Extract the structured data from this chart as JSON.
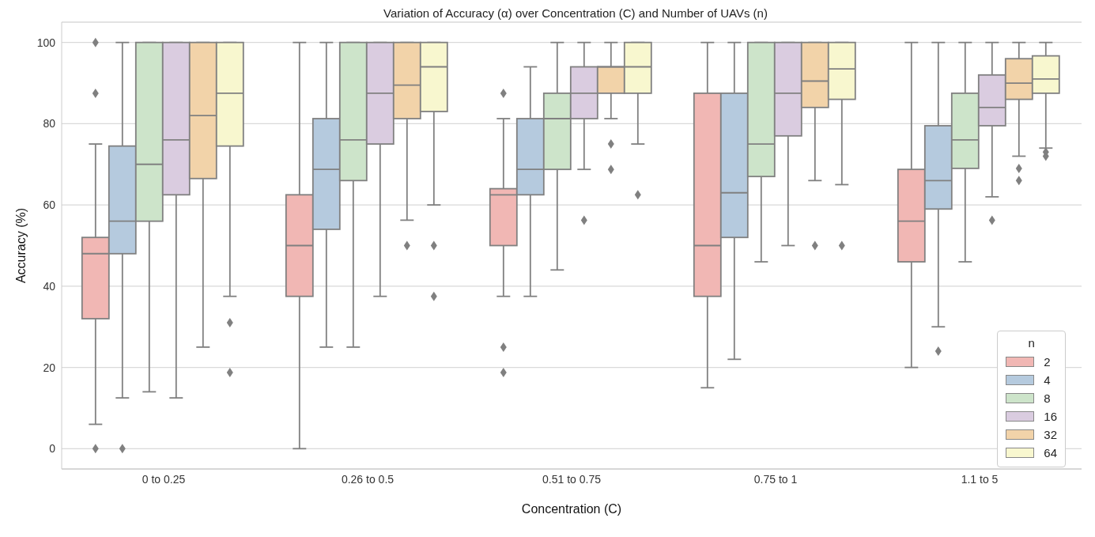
{
  "chart_data": {
    "type": "box",
    "title": "Variation of Accuracy (α) over Concentration (C) and Number of UAVs (n)",
    "xlabel": "Concentration (C)",
    "ylabel": "Accuracy (%)",
    "legend_title": "n",
    "categories": [
      "0 to 0.25",
      "0.26 to 0.5",
      "0.51 to 0.75",
      "0.75 to 1",
      "1.1 to 5"
    ],
    "ylim": [
      -5,
      105
    ],
    "yticks": [
      0,
      20,
      40,
      60,
      80,
      100
    ],
    "grid": "y",
    "legend": "bottom right",
    "series": [
      {
        "name": "2",
        "color": "#f1b7b4",
        "boxes": [
          {
            "low": 6,
            "q1": 32,
            "median": 48,
            "q3": 52,
            "high": 75,
            "outliers": [
              0,
              87.5,
              100
            ]
          },
          {
            "low": 0,
            "q1": 37.5,
            "median": 50,
            "q3": 62.5,
            "high": 100
          },
          {
            "low": 37.5,
            "q1": 50,
            "median": 62.5,
            "q3": 64,
            "high": 81.25,
            "outliers": [
              87.5,
              25,
              18.75
            ]
          },
          {
            "low": 15,
            "q1": 37.5,
            "median": 50,
            "q3": 87.5,
            "high": 100
          },
          {
            "low": 20,
            "q1": 46,
            "median": 56,
            "q3": 68.75,
            "high": 100
          }
        ]
      },
      {
        "name": "4",
        "color": "#b5cade",
        "boxes": [
          {
            "low": 12.5,
            "q1": 48,
            "median": 56,
            "q3": 74.5,
            "high": 100,
            "outliers": [
              0
            ]
          },
          {
            "low": 25,
            "q1": 54,
            "median": 68.75,
            "q3": 81.25,
            "high": 100
          },
          {
            "low": 37.5,
            "q1": 62.5,
            "median": 68.75,
            "q3": 81.25,
            "high": 94
          },
          {
            "low": 22,
            "q1": 52,
            "median": 63,
            "q3": 87.5,
            "high": 100
          },
          {
            "low": 30,
            "q1": 59,
            "median": 66,
            "q3": 79.5,
            "high": 100,
            "outliers": [
              24
            ]
          }
        ]
      },
      {
        "name": "8",
        "color": "#cde4ca",
        "boxes": [
          {
            "low": 14,
            "q1": 56,
            "median": 70,
            "q3": 100,
            "high": 100
          },
          {
            "low": 25,
            "q1": 66,
            "median": 76,
            "q3": 100,
            "high": 100
          },
          {
            "low": 44,
            "q1": 68.75,
            "median": 81.25,
            "q3": 87.5,
            "high": 100
          },
          {
            "low": 46,
            "q1": 67,
            "median": 75,
            "q3": 100,
            "high": 100
          },
          {
            "low": 46,
            "q1": 69,
            "median": 76,
            "q3": 87.5,
            "high": 100
          }
        ]
      },
      {
        "name": "16",
        "color": "#dacce0",
        "boxes": [
          {
            "low": 12.5,
            "q1": 62.5,
            "median": 76,
            "q3": 100,
            "high": 100
          },
          {
            "low": 37.5,
            "q1": 75,
            "median": 87.5,
            "q3": 100,
            "high": 100
          },
          {
            "low": 68.75,
            "q1": 81.25,
            "median": 87.5,
            "q3": 94,
            "high": 100,
            "outliers": [
              56.25
            ]
          },
          {
            "low": 50,
            "q1": 77,
            "median": 87.5,
            "q3": 100,
            "high": 100
          },
          {
            "low": 62,
            "q1": 79.5,
            "median": 84,
            "q3": 92,
            "high": 100,
            "outliers": [
              56.25
            ]
          }
        ]
      },
      {
        "name": "32",
        "color": "#f2d3a9",
        "boxes": [
          {
            "low": 25,
            "q1": 66.5,
            "median": 82,
            "q3": 100,
            "high": 100
          },
          {
            "low": 56.25,
            "q1": 81.25,
            "median": 89.5,
            "q3": 100,
            "high": 100,
            "outliers": [
              50
            ]
          },
          {
            "low": 81.25,
            "q1": 87.5,
            "median": 94,
            "q3": 94,
            "high": 100,
            "outliers": [
              75,
              68.75
            ]
          },
          {
            "low": 66,
            "q1": 84,
            "median": 90.5,
            "q3": 100,
            "high": 100,
            "outliers": [
              50
            ]
          },
          {
            "low": 72,
            "q1": 86,
            "median": 90,
            "q3": 96,
            "high": 100,
            "outliers": [
              69,
              66
            ]
          }
        ]
      },
      {
        "name": "64",
        "color": "#f8f7cf",
        "boxes": [
          {
            "low": 37.5,
            "q1": 74.5,
            "median": 87.5,
            "q3": 100,
            "high": 100,
            "outliers": [
              31,
              18.75
            ]
          },
          {
            "low": 60,
            "q1": 83,
            "median": 94,
            "q3": 100,
            "high": 100,
            "outliers": [
              50,
              37.5
            ]
          },
          {
            "low": 75,
            "q1": 87.5,
            "median": 94,
            "q3": 100,
            "high": 100,
            "outliers": [
              62.5
            ]
          },
          {
            "low": 65,
            "q1": 86,
            "median": 93.5,
            "q3": 100,
            "high": 100,
            "outliers": [
              50
            ]
          },
          {
            "low": 74,
            "q1": 87.5,
            "median": 91,
            "q3": 96.7,
            "high": 100,
            "outliers": [
              73,
              72
            ]
          }
        ]
      }
    ]
  }
}
